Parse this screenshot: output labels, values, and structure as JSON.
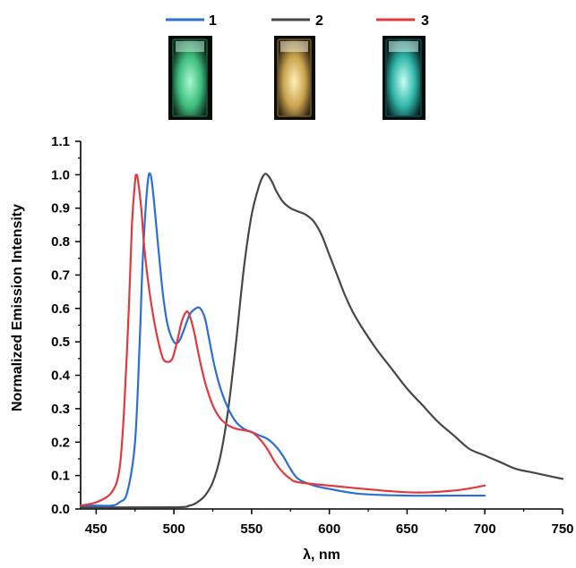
{
  "chart_data": {
    "type": "line",
    "title": "",
    "xlabel": "λ, nm",
    "ylabel": "Normalized Emission Intensity",
    "xlim": [
      440,
      750
    ],
    "ylim": [
      0.0,
      1.1
    ],
    "x_ticks": [
      450,
      500,
      550,
      600,
      650,
      700,
      750
    ],
    "y_ticks": [
      0.0,
      0.1,
      0.2,
      0.3,
      0.4,
      0.5,
      0.6,
      0.7,
      0.8,
      0.9,
      1.0,
      1.1
    ],
    "x_tick_labels": [
      "450",
      "500",
      "550",
      "600",
      "650",
      "700",
      "750"
    ],
    "y_tick_labels": [
      "0.0",
      "0.1",
      "0.2",
      "0.3",
      "0.4",
      "0.5",
      "0.6",
      "0.7",
      "0.8",
      "0.9",
      "1.0",
      "1.1"
    ],
    "grid": false,
    "legend_position": "top",
    "series": [
      {
        "name": "1",
        "color": "#2a6fd6",
        "x": [
          440,
          450,
          460,
          465,
          470,
          475,
          478,
          480,
          483,
          485,
          487,
          490,
          493,
          496,
          500,
          503,
          506,
          510,
          514,
          517,
          520,
          523,
          526,
          530,
          535,
          540,
          545,
          550,
          555,
          560,
          565,
          570,
          575,
          580,
          590,
          600,
          620,
          650,
          680,
          700
        ],
        "y": [
          0.01,
          0.01,
          0.01,
          0.02,
          0.05,
          0.2,
          0.5,
          0.75,
          0.97,
          1.0,
          0.93,
          0.78,
          0.64,
          0.55,
          0.5,
          0.5,
          0.53,
          0.58,
          0.6,
          0.6,
          0.57,
          0.5,
          0.43,
          0.36,
          0.3,
          0.26,
          0.24,
          0.23,
          0.22,
          0.21,
          0.19,
          0.16,
          0.12,
          0.09,
          0.07,
          0.06,
          0.045,
          0.04,
          0.04,
          0.04
        ]
      },
      {
        "name": "2",
        "color": "#474747",
        "x": [
          440,
          500,
          510,
          515,
          520,
          525,
          530,
          535,
          540,
          545,
          550,
          555,
          558,
          560,
          563,
          566,
          570,
          575,
          580,
          585,
          590,
          595,
          600,
          605,
          610,
          615,
          620,
          630,
          640,
          650,
          660,
          670,
          680,
          690,
          700,
          710,
          720,
          730,
          740,
          750
        ],
        "y": [
          0.005,
          0.005,
          0.01,
          0.02,
          0.04,
          0.08,
          0.16,
          0.3,
          0.5,
          0.72,
          0.88,
          0.97,
          1.0,
          1.0,
          0.98,
          0.95,
          0.92,
          0.9,
          0.89,
          0.88,
          0.86,
          0.82,
          0.76,
          0.7,
          0.64,
          0.59,
          0.55,
          0.48,
          0.42,
          0.36,
          0.31,
          0.26,
          0.22,
          0.18,
          0.16,
          0.14,
          0.12,
          0.11,
          0.1,
          0.09
        ]
      },
      {
        "name": "3",
        "color": "#e0393e",
        "x": [
          440,
          450,
          460,
          465,
          468,
          471,
          473,
          475,
          476,
          477,
          479,
          481,
          484,
          487,
          490,
          493,
          496,
          499,
          502,
          505,
          508,
          510,
          513,
          516,
          520,
          525,
          530,
          535,
          540,
          550,
          555,
          560,
          565,
          570,
          575,
          580,
          600,
          650,
          680,
          700
        ],
        "y": [
          0.01,
          0.02,
          0.05,
          0.12,
          0.3,
          0.6,
          0.85,
          0.98,
          1.0,
          0.98,
          0.9,
          0.78,
          0.66,
          0.57,
          0.5,
          0.45,
          0.44,
          0.45,
          0.5,
          0.56,
          0.59,
          0.58,
          0.53,
          0.46,
          0.38,
          0.31,
          0.27,
          0.25,
          0.24,
          0.23,
          0.21,
          0.18,
          0.14,
          0.11,
          0.09,
          0.08,
          0.07,
          0.05,
          0.055,
          0.07
        ]
      }
    ]
  },
  "vials": [
    {
      "name": "vial-1",
      "glow": "#7df0b4",
      "tint": "#1d5c3a"
    },
    {
      "name": "vial-2",
      "glow": "#ffe08a",
      "tint": "#6d5a2a"
    },
    {
      "name": "vial-3",
      "glow": "#8ff0e6",
      "tint": "#0f4a49"
    }
  ]
}
